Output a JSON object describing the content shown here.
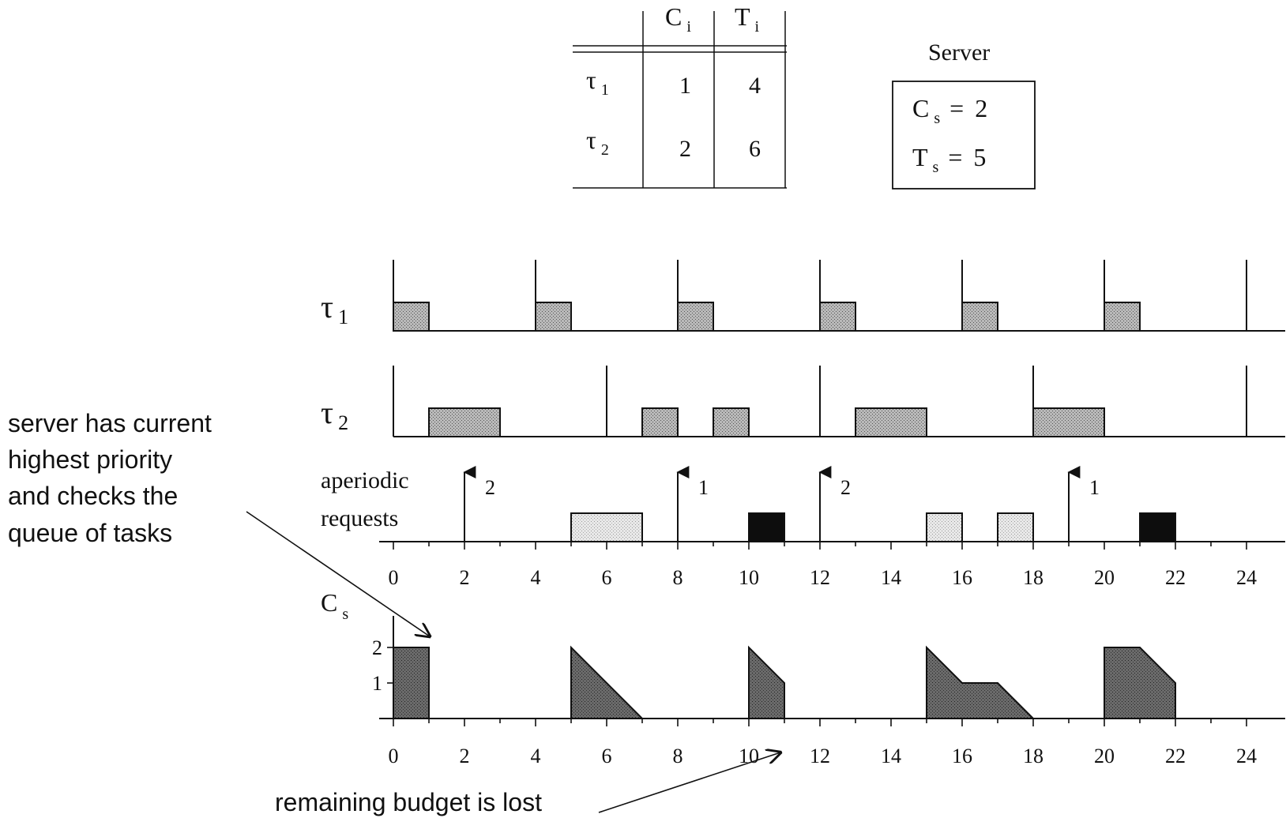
{
  "task_table": {
    "col_headers": [
      "C",
      "T"
    ],
    "header_subscript": "i",
    "rows": [
      {
        "name": "τ",
        "sub": "1",
        "C": "1",
        "T": "4"
      },
      {
        "name": "τ",
        "sub": "2",
        "C": "2",
        "T": "6"
      }
    ]
  },
  "server": {
    "title": "Server",
    "lines": [
      {
        "sym": "C",
        "sub": "s",
        "eq": "=",
        "val": "2"
      },
      {
        "sym": "T",
        "sub": "s",
        "eq": "=",
        "val": "5"
      }
    ]
  },
  "rows": {
    "tau1": {
      "sym": "τ",
      "sub": "1"
    },
    "tau2": {
      "sym": "τ",
      "sub": "2"
    },
    "aperiodic": [
      "aperiodic",
      "requests"
    ],
    "cs": {
      "sym": "C",
      "sub": "s"
    }
  },
  "timeline": {
    "t_min": 0,
    "t_max": 25,
    "tick_labels": [
      "0",
      "2",
      "4",
      "6",
      "8",
      "10",
      "12",
      "14",
      "16",
      "18",
      "20",
      "22",
      "24"
    ]
  },
  "schedule": {
    "tau1_releases": [
      0,
      4,
      8,
      12,
      16,
      20,
      24
    ],
    "tau1_exec": [
      [
        0,
        1
      ],
      [
        4,
        5
      ],
      [
        8,
        9
      ],
      [
        12,
        13
      ],
      [
        16,
        17
      ],
      [
        20,
        21
      ]
    ],
    "tau2_releases": [
      0,
      6,
      12,
      18,
      24
    ],
    "tau2_exec": [
      [
        1,
        3
      ],
      [
        7,
        8
      ],
      [
        9,
        10
      ],
      [
        13,
        15
      ],
      [
        18,
        20
      ]
    ],
    "aperiodic_arrivals": [
      {
        "t": 2,
        "label": "2"
      },
      {
        "t": 8,
        "label": "1"
      },
      {
        "t": 12,
        "label": "2"
      },
      {
        "t": 19,
        "label": "1"
      }
    ],
    "aperiodic_exec_light": [
      [
        5,
        7
      ],
      [
        15,
        16
      ],
      [
        17,
        18
      ]
    ],
    "aperiodic_exec_dark": [
      [
        10,
        11
      ],
      [
        21,
        22
      ]
    ],
    "budget_levels": [
      "2",
      "1"
    ],
    "budget_segments": [
      [
        [
          0,
          2
        ],
        [
          1,
          2
        ],
        [
          1,
          0
        ]
      ],
      [
        [
          5,
          2
        ],
        [
          7,
          0
        ]
      ],
      [
        [
          10,
          2
        ],
        [
          11,
          1
        ],
        [
          11,
          0
        ]
      ],
      [
        [
          15,
          2
        ],
        [
          16,
          1
        ],
        [
          17,
          1
        ],
        [
          18,
          0
        ]
      ],
      [
        [
          20,
          2
        ],
        [
          21,
          2
        ],
        [
          22,
          1
        ],
        [
          22,
          0
        ]
      ]
    ]
  },
  "annotations": {
    "top": [
      "server has current",
      "highest priority",
      "and checks the",
      "queue of tasks"
    ],
    "bottom": "remaining budget is lost"
  }
}
